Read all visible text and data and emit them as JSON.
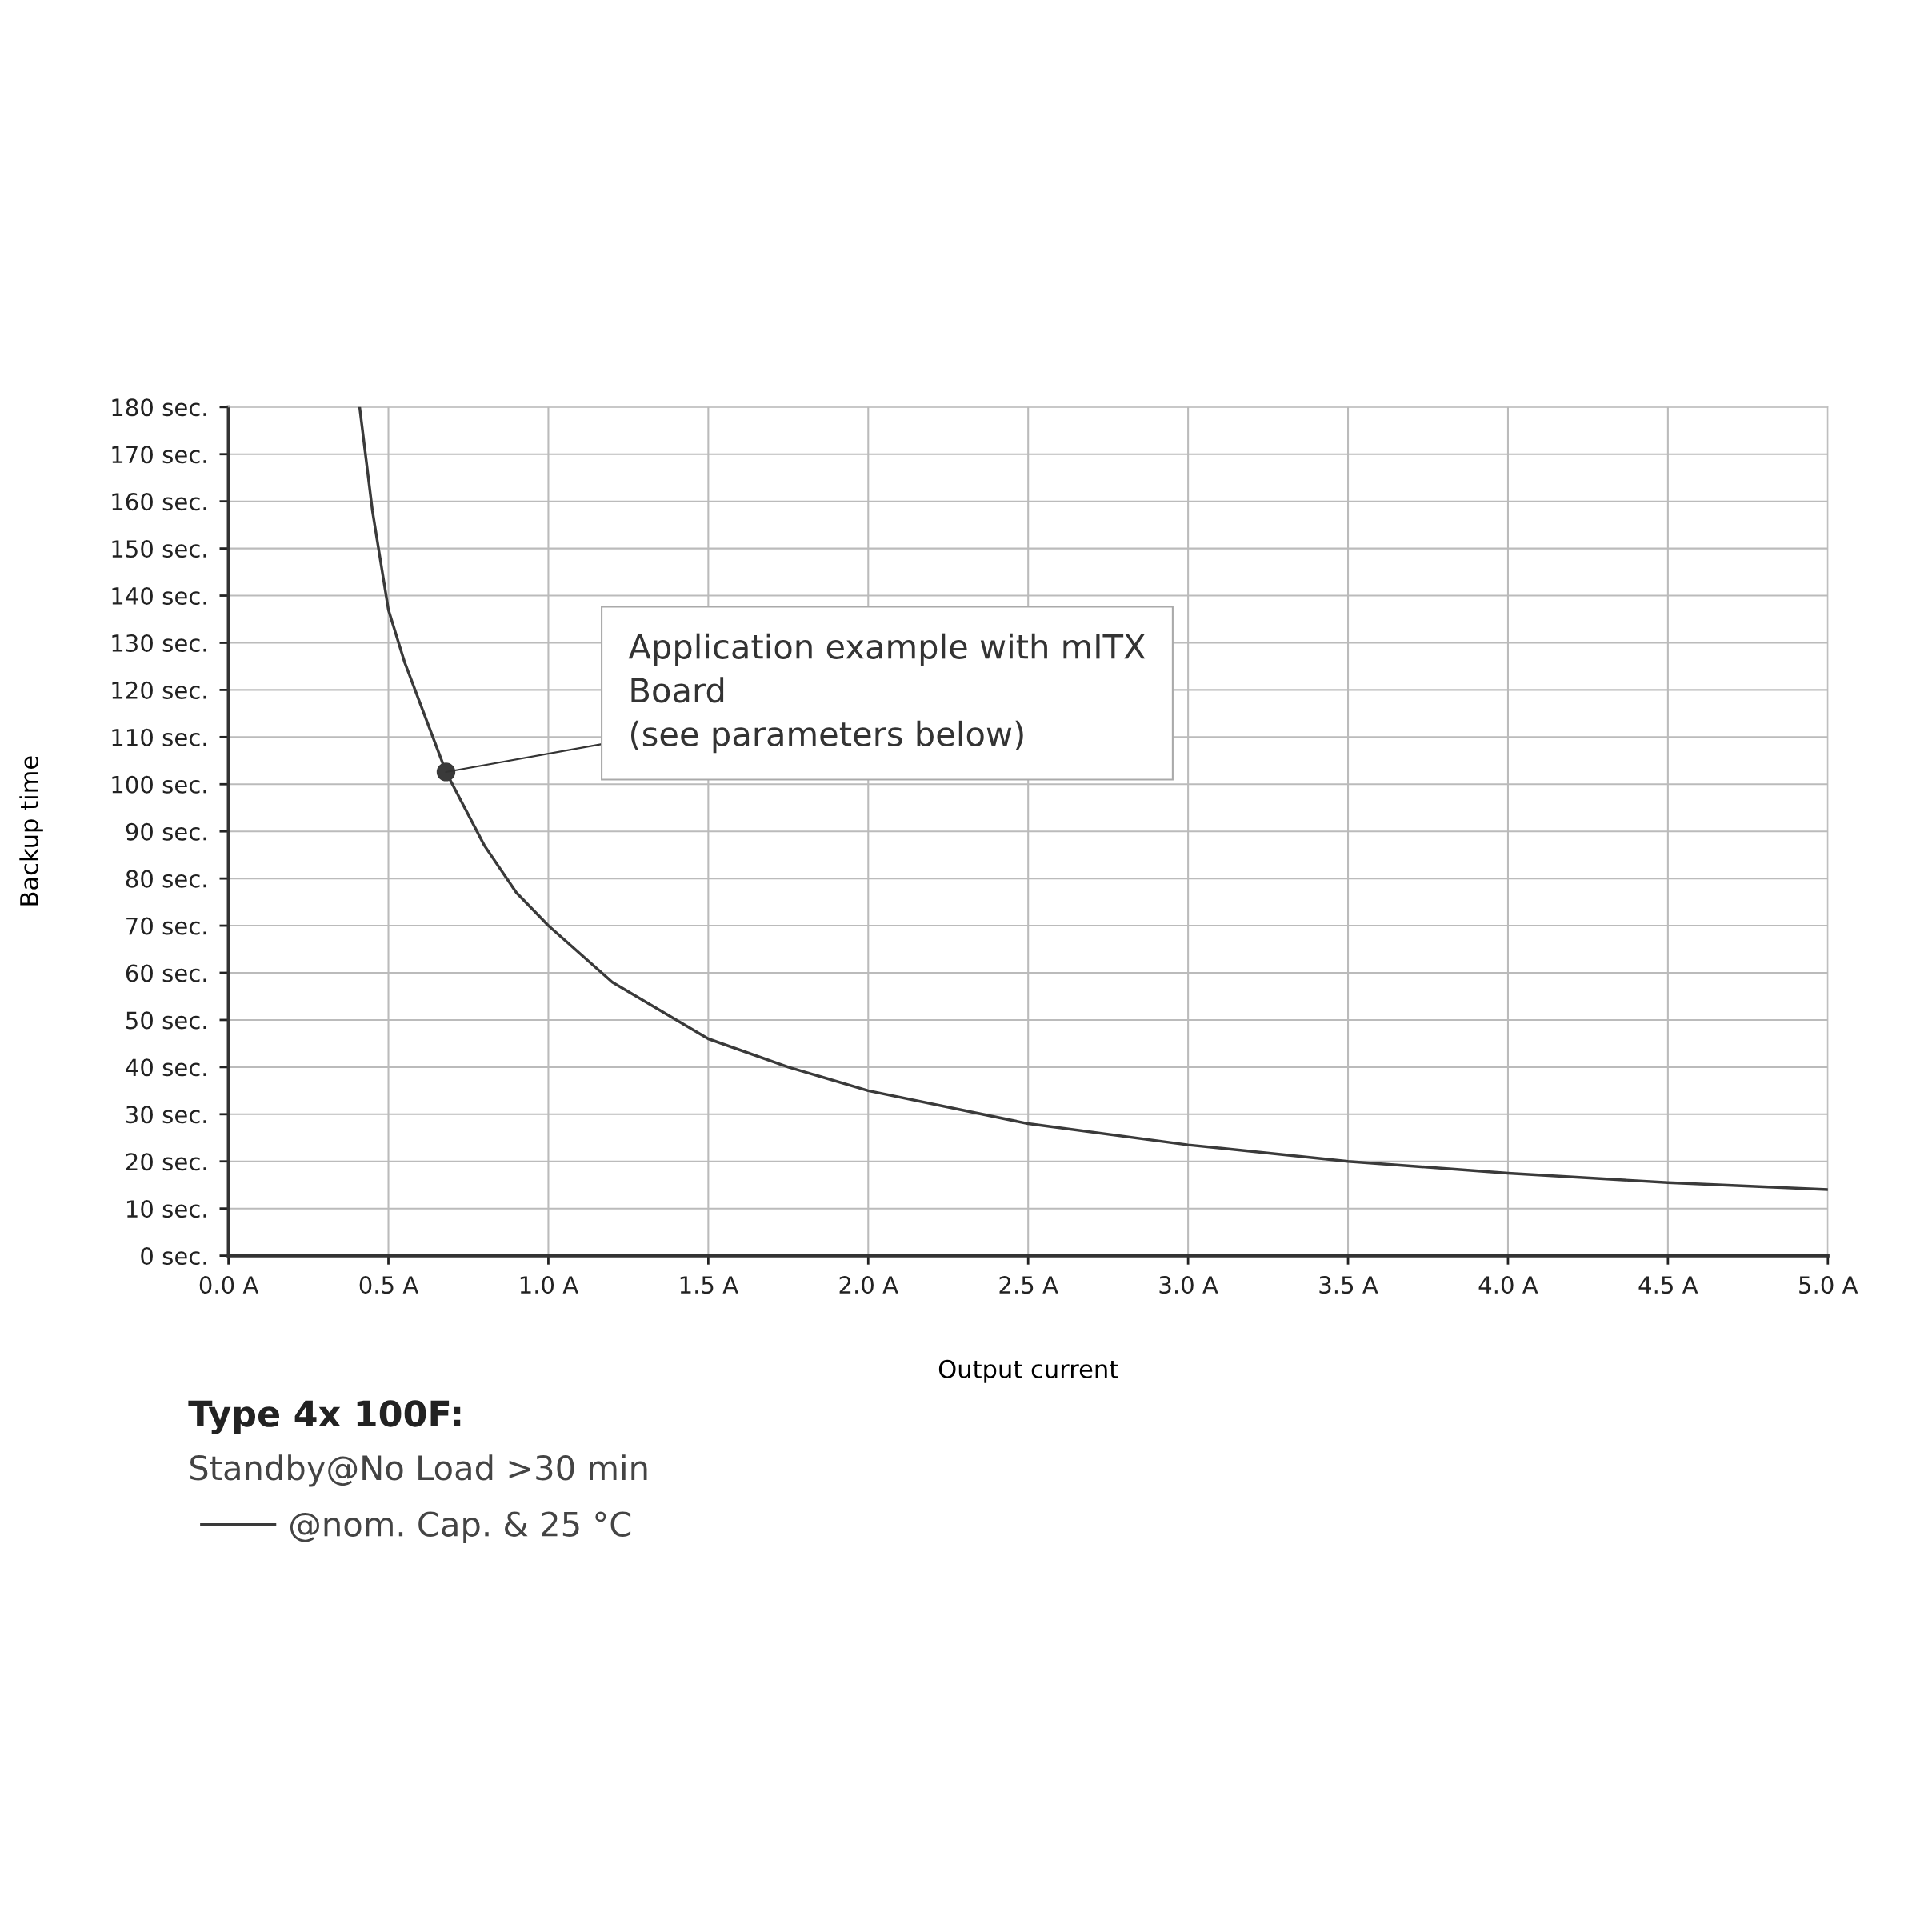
{
  "chart_data": {
    "type": "line",
    "xlabel": "Output current",
    "ylabel": "Backup time",
    "series": [
      {
        "name": "@nom. Cap. & 25 °C",
        "color": "#3a3a3a",
        "x": [
          0.41,
          0.45,
          0.5,
          0.55,
          0.6,
          0.68,
          0.8,
          0.9,
          1.0,
          1.2,
          1.5,
          1.75,
          2.0,
          2.5,
          3.0,
          3.5,
          4.0,
          4.5,
          5.0
        ],
        "values": [
          180,
          158,
          137,
          126,
          117,
          102.6,
          87,
          77,
          70,
          58,
          46,
          40,
          35,
          28,
          23.5,
          20,
          17.5,
          15.5,
          14
        ]
      },
      {
        "type": "scatter",
        "color": "#3a3a3a",
        "marker": "circle",
        "x": [
          0.68
        ],
        "values": [
          102.6
        ]
      }
    ],
    "annotations": [
      {
        "text": "Application example with mITX\nBoard\n(see parameters below)",
        "x": 0.68,
        "y": 102.6
      },
      "Type 4x 100F:",
      "Standby@No Load >30 min"
    ],
    "xlim": [
      0,
      5
    ],
    "ylim": [
      0,
      180
    ],
    "xticks": [
      {
        "value": 0,
        "label": "0.0 A"
      },
      {
        "value": 0.5,
        "label": "0.5 A"
      },
      {
        "value": 1,
        "label": "1.0 A"
      },
      {
        "value": 1.5,
        "label": "1.5 A"
      },
      {
        "value": 2,
        "label": "2.0 A"
      },
      {
        "value": 2.5,
        "label": "2.5 A"
      },
      {
        "value": 3,
        "label": "3.0 A"
      },
      {
        "value": 3.5,
        "label": "3.5 A"
      },
      {
        "value": 4,
        "label": "4.0 A"
      },
      {
        "value": 4.5,
        "label": "4.5 A"
      },
      {
        "value": 5,
        "label": "5.0 A"
      }
    ],
    "yticks": [
      {
        "value": 0,
        "label": "0 sec."
      },
      {
        "value": 10,
        "label": "10 sec."
      },
      {
        "value": 20,
        "label": "20 sec."
      },
      {
        "value": 30,
        "label": "30 sec."
      },
      {
        "value": 40,
        "label": "40 sec."
      },
      {
        "value": 50,
        "label": "50 sec."
      },
      {
        "value": 60,
        "label": "60 sec."
      },
      {
        "value": 70,
        "label": "70 sec."
      },
      {
        "value": 80,
        "label": "80 sec."
      },
      {
        "value": 90,
        "label": "90 sec."
      },
      {
        "value": 100,
        "label": "100 sec."
      },
      {
        "value": 110,
        "label": "110 sec."
      },
      {
        "value": 120,
        "label": "120 sec."
      },
      {
        "value": 130,
        "label": "130 sec."
      },
      {
        "value": 140,
        "label": "140 sec."
      },
      {
        "value": 150,
        "label": "150 sec."
      },
      {
        "value": 160,
        "label": "160 sec."
      },
      {
        "value": 170,
        "label": "170 sec."
      },
      {
        "value": 180,
        "label": "180 sec."
      }
    ],
    "grid": true,
    "legend": "bottom",
    "line_style": "solid",
    "marker": "none"
  }
}
